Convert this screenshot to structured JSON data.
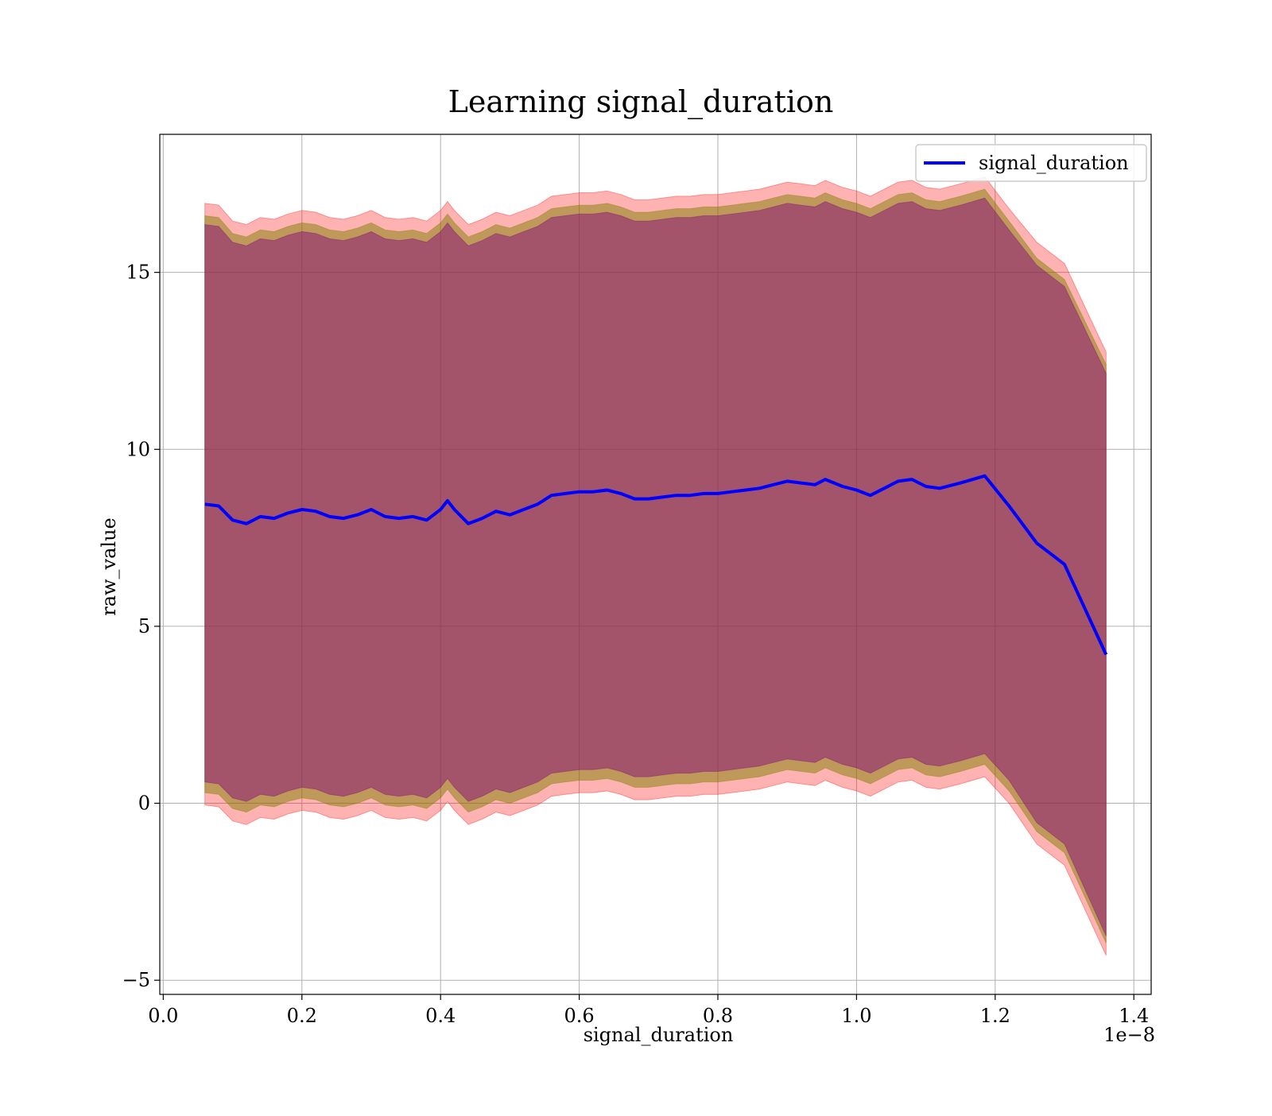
{
  "chart_data": {
    "type": "line",
    "title": "Learning signal_duration",
    "xlabel": "signal_duration",
    "ylabel": "raw_value",
    "x_offset_label": "1e−8",
    "xlim": [
      -0.005,
      1.425
    ],
    "ylim": [
      -5.4,
      18.9
    ],
    "x_ticks": [
      0.0,
      0.2,
      0.4,
      0.6,
      0.8,
      1.0,
      1.2,
      1.4
    ],
    "x_tick_labels": [
      "0.0",
      "0.2",
      "0.4",
      "0.6",
      "0.8",
      "1.0",
      "1.2",
      "1.4"
    ],
    "y_ticks": [
      -5,
      0,
      5,
      10,
      15
    ],
    "y_tick_labels": [
      "−5",
      "0",
      "5",
      "10",
      "15"
    ],
    "grid": true,
    "legend_position": "top-right",
    "colors": {
      "line": "#0000ff",
      "outer_band": "#ff0000",
      "middle_band": "#808000",
      "inner_band": "#800080"
    },
    "x": [
      0.06,
      0.08,
      0.1,
      0.12,
      0.14,
      0.16,
      0.18,
      0.2,
      0.22,
      0.24,
      0.26,
      0.28,
      0.3,
      0.32,
      0.34,
      0.36,
      0.38,
      0.4,
      0.41,
      0.42,
      0.44,
      0.46,
      0.48,
      0.5,
      0.52,
      0.54,
      0.56,
      0.58,
      0.6,
      0.62,
      0.64,
      0.66,
      0.68,
      0.7,
      0.72,
      0.74,
      0.76,
      0.78,
      0.8,
      0.82,
      0.84,
      0.86,
      0.88,
      0.9,
      0.92,
      0.94,
      0.955,
      0.98,
      1.0,
      1.02,
      1.04,
      1.06,
      1.08,
      1.1,
      1.12,
      1.15,
      1.185,
      1.22,
      1.26,
      1.3,
      1.36
    ],
    "series": [
      {
        "name": "signal_duration",
        "values": [
          8.45,
          8.4,
          8.0,
          7.9,
          8.1,
          8.05,
          8.2,
          8.3,
          8.25,
          8.1,
          8.05,
          8.15,
          8.3,
          8.1,
          8.05,
          8.1,
          8.0,
          8.3,
          8.55,
          8.3,
          7.9,
          8.05,
          8.25,
          8.15,
          8.3,
          8.45,
          8.7,
          8.75,
          8.8,
          8.8,
          8.85,
          8.75,
          8.6,
          8.6,
          8.65,
          8.7,
          8.7,
          8.75,
          8.75,
          8.8,
          8.85,
          8.9,
          9.0,
          9.1,
          9.05,
          9.0,
          9.15,
          8.95,
          8.85,
          8.7,
          8.9,
          9.1,
          9.15,
          8.95,
          8.9,
          9.05,
          9.25,
          8.4,
          7.35,
          6.75,
          4.2
        ]
      }
    ],
    "bands": [
      {
        "name": "outer",
        "upper": [
          16.95,
          16.9,
          16.45,
          16.35,
          16.55,
          16.5,
          16.65,
          16.75,
          16.7,
          16.55,
          16.5,
          16.6,
          16.75,
          16.55,
          16.5,
          16.55,
          16.45,
          16.75,
          17.0,
          16.75,
          16.35,
          16.5,
          16.7,
          16.6,
          16.75,
          16.9,
          17.15,
          17.2,
          17.25,
          17.25,
          17.3,
          17.2,
          17.05,
          17.05,
          17.1,
          17.15,
          17.15,
          17.2,
          17.2,
          17.25,
          17.3,
          17.35,
          17.45,
          17.55,
          17.5,
          17.45,
          17.6,
          17.4,
          17.3,
          17.15,
          17.35,
          17.55,
          17.6,
          17.4,
          17.35,
          17.5,
          17.7,
          16.8,
          15.85,
          15.25,
          12.75
        ],
        "lower": [
          -0.05,
          -0.1,
          -0.5,
          -0.6,
          -0.4,
          -0.45,
          -0.3,
          -0.2,
          -0.25,
          -0.4,
          -0.45,
          -0.35,
          -0.2,
          -0.4,
          -0.45,
          -0.4,
          -0.5,
          -0.2,
          0.05,
          -0.2,
          -0.6,
          -0.45,
          -0.25,
          -0.35,
          -0.2,
          -0.05,
          0.2,
          0.25,
          0.3,
          0.3,
          0.35,
          0.25,
          0.1,
          0.1,
          0.15,
          0.2,
          0.2,
          0.25,
          0.25,
          0.3,
          0.35,
          0.4,
          0.5,
          0.6,
          0.55,
          0.5,
          0.65,
          0.45,
          0.35,
          0.2,
          0.4,
          0.6,
          0.65,
          0.45,
          0.4,
          0.55,
          0.75,
          0.0,
          -1.15,
          -1.75,
          -4.3
        ]
      },
      {
        "name": "middle",
        "upper": [
          16.6,
          16.55,
          16.1,
          16.0,
          16.2,
          16.15,
          16.3,
          16.4,
          16.35,
          16.2,
          16.15,
          16.25,
          16.4,
          16.2,
          16.15,
          16.2,
          16.1,
          16.4,
          16.65,
          16.4,
          16.0,
          16.15,
          16.35,
          16.25,
          16.4,
          16.55,
          16.8,
          16.85,
          16.9,
          16.9,
          16.95,
          16.85,
          16.7,
          16.7,
          16.75,
          16.8,
          16.8,
          16.85,
          16.85,
          16.9,
          16.95,
          17.0,
          17.1,
          17.2,
          17.15,
          17.1,
          17.25,
          17.05,
          16.95,
          16.8,
          17.0,
          17.2,
          17.25,
          17.05,
          17.0,
          17.15,
          17.35,
          16.45,
          15.4,
          14.8,
          12.4
        ],
        "lower": [
          0.3,
          0.25,
          -0.15,
          -0.25,
          -0.05,
          -0.1,
          0.05,
          0.15,
          0.1,
          -0.05,
          -0.1,
          0.0,
          0.15,
          -0.05,
          -0.1,
          -0.05,
          -0.15,
          0.15,
          0.4,
          0.15,
          -0.25,
          -0.1,
          0.1,
          0.0,
          0.15,
          0.3,
          0.55,
          0.6,
          0.65,
          0.65,
          0.7,
          0.6,
          0.45,
          0.45,
          0.5,
          0.55,
          0.55,
          0.6,
          0.6,
          0.65,
          0.7,
          0.75,
          0.85,
          0.95,
          0.9,
          0.85,
          1.0,
          0.8,
          0.7,
          0.55,
          0.75,
          0.95,
          1.0,
          0.8,
          0.75,
          0.9,
          1.1,
          0.35,
          -0.8,
          -1.4,
          -3.95
        ]
      },
      {
        "name": "inner",
        "upper": [
          16.35,
          16.3,
          15.85,
          15.75,
          15.95,
          15.9,
          16.05,
          16.15,
          16.1,
          15.95,
          15.9,
          16.0,
          16.15,
          15.95,
          15.9,
          15.95,
          15.85,
          16.15,
          16.4,
          16.15,
          15.75,
          15.9,
          16.1,
          16.0,
          16.15,
          16.3,
          16.55,
          16.6,
          16.65,
          16.65,
          16.7,
          16.6,
          16.45,
          16.45,
          16.5,
          16.55,
          16.55,
          16.6,
          16.6,
          16.65,
          16.7,
          16.75,
          16.85,
          16.95,
          16.9,
          16.85,
          17.0,
          16.8,
          16.7,
          16.55,
          16.75,
          16.95,
          17.0,
          16.8,
          16.75,
          16.9,
          17.1,
          16.2,
          15.2,
          14.6,
          12.15
        ],
        "lower": [
          0.6,
          0.55,
          0.15,
          0.05,
          0.25,
          0.2,
          0.35,
          0.45,
          0.4,
          0.25,
          0.2,
          0.3,
          0.45,
          0.25,
          0.2,
          0.25,
          0.15,
          0.45,
          0.7,
          0.45,
          0.05,
          0.2,
          0.4,
          0.3,
          0.45,
          0.6,
          0.85,
          0.9,
          0.95,
          0.95,
          1.0,
          0.9,
          0.75,
          0.75,
          0.8,
          0.85,
          0.85,
          0.9,
          0.9,
          0.95,
          1.0,
          1.05,
          1.15,
          1.25,
          1.2,
          1.15,
          1.3,
          1.1,
          1.0,
          0.85,
          1.05,
          1.25,
          1.3,
          1.1,
          1.05,
          1.2,
          1.4,
          0.65,
          -0.55,
          -1.15,
          -3.75
        ]
      }
    ]
  }
}
